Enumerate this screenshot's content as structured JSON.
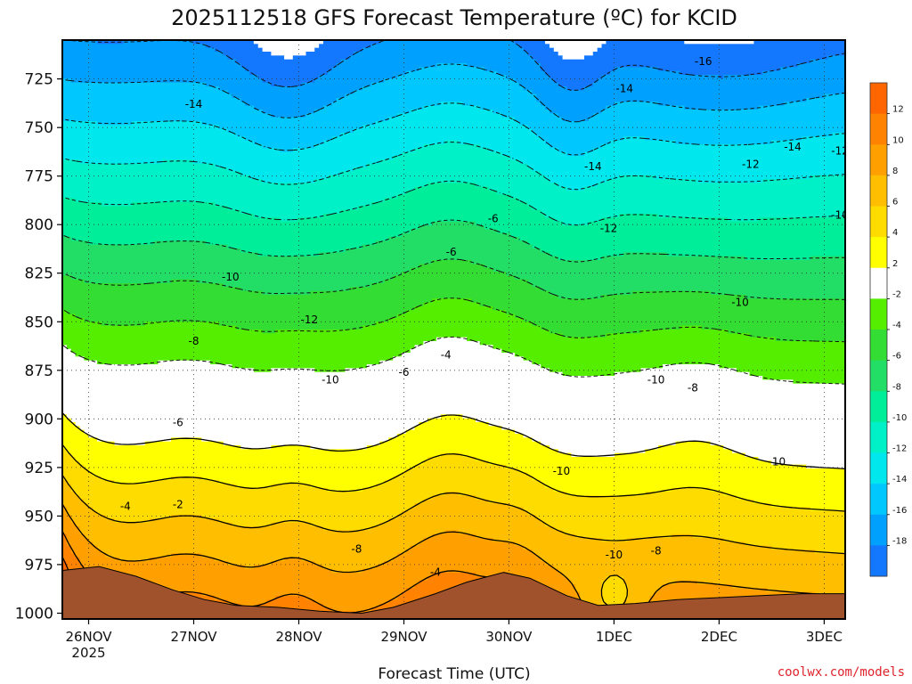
{
  "chart_data": {
    "type": "heatmap",
    "title": "2025112518 GFS Forecast Temperature (ºC) for KCID",
    "xlabel": "Forecast Time (UTC)",
    "ylabel": "",
    "x_ticks": [
      "26NOV",
      "27NOV",
      "28NOV",
      "29NOV",
      "30NOV",
      "1DEC",
      "2DEC",
      "3DEC"
    ],
    "x_tick_sub": "2025",
    "x_range": [
      -0.25,
      7.2
    ],
    "y_ticks": [
      725,
      750,
      775,
      800,
      825,
      850,
      875,
      900,
      925,
      950,
      975,
      1000
    ],
    "y_range": [
      705,
      1003
    ],
    "grid": true,
    "colorbar": {
      "bins": [
        {
          "min": 12,
          "max": 14,
          "color": "#ff6600"
        },
        {
          "min": 10,
          "max": 12,
          "color": "#ff8200"
        },
        {
          "min": 8,
          "max": 10,
          "color": "#ffa000"
        },
        {
          "min": 6,
          "max": 8,
          "color": "#ffbe00"
        },
        {
          "min": 4,
          "max": 6,
          "color": "#ffdc00"
        },
        {
          "min": 2,
          "max": 4,
          "color": "#ffff00"
        },
        {
          "min": -2,
          "max": 2,
          "color": "#ffffff"
        },
        {
          "min": -4,
          "max": -2,
          "color": "#55ee00"
        },
        {
          "min": -6,
          "max": -4,
          "color": "#33dd33"
        },
        {
          "min": -8,
          "max": -6,
          "color": "#22dd66"
        },
        {
          "min": -10,
          "max": -8,
          "color": "#00ee99"
        },
        {
          "min": -12,
          "max": -10,
          "color": "#00f0c8"
        },
        {
          "min": -14,
          "max": -12,
          "color": "#00e8ee"
        },
        {
          "min": -16,
          "max": -14,
          "color": "#00c8ff"
        },
        {
          "min": -18,
          "max": -16,
          "color": "#00a0ff"
        },
        {
          "min": -20,
          "max": -18,
          "color": "#1478ff"
        }
      ],
      "tick_labels": [
        "12",
        "10",
        "8",
        "6",
        "4",
        "2",
        "-2",
        "-4",
        "-6",
        "-8",
        "-10",
        "-12",
        "-14",
        "-16",
        "-18"
      ]
    },
    "contour_labels": [
      {
        "t": 1.0,
        "p": 738,
        "v": "-14"
      },
      {
        "t": 1.35,
        "p": 827,
        "v": "-10"
      },
      {
        "t": 2.1,
        "p": 849,
        "v": "-12"
      },
      {
        "t": 1.0,
        "p": 860,
        "v": "-8"
      },
      {
        "t": 2.3,
        "p": 880,
        "v": "-10"
      },
      {
        "t": 0.85,
        "p": 902,
        "v": "-6"
      },
      {
        "t": 0.35,
        "p": 945,
        "v": "-4"
      },
      {
        "t": 0.85,
        "p": 944,
        "v": "-2"
      },
      {
        "t": 2.55,
        "p": 967,
        "v": "-8"
      },
      {
        "t": 3.0,
        "p": 876,
        "v": "-6"
      },
      {
        "t": 3.4,
        "p": 867,
        "v": "-4"
      },
      {
        "t": 3.45,
        "p": 814,
        "v": "-6"
      },
      {
        "t": 3.85,
        "p": 797,
        "v": "-6"
      },
      {
        "t": 3.3,
        "p": 979,
        "v": "-4"
      },
      {
        "t": 4.5,
        "p": 927,
        "v": "-10"
      },
      {
        "t": 4.8,
        "p": 770,
        "v": "-14"
      },
      {
        "t": 5.1,
        "p": 730,
        "v": "-14"
      },
      {
        "t": 5.85,
        "p": 716,
        "v": "-16"
      },
      {
        "t": 6.3,
        "p": 769,
        "v": "-12"
      },
      {
        "t": 6.7,
        "p": 760,
        "v": "-14"
      },
      {
        "t": 7.15,
        "p": 762,
        "v": "-12"
      },
      {
        "t": 7.15,
        "p": 795,
        "v": "-10"
      },
      {
        "t": 4.95,
        "p": 802,
        "v": "-12"
      },
      {
        "t": 6.2,
        "p": 840,
        "v": "-10"
      },
      {
        "t": 5.4,
        "p": 880,
        "v": "-10"
      },
      {
        "t": 5.75,
        "p": 884,
        "v": "-8"
      },
      {
        "t": 5.4,
        "p": 968,
        "v": "-8"
      },
      {
        "t": 5.0,
        "p": 970,
        "v": "-10"
      },
      {
        "t": 6.55,
        "p": 922,
        "v": "-10"
      }
    ]
  },
  "credit": "coolwx.com/models"
}
